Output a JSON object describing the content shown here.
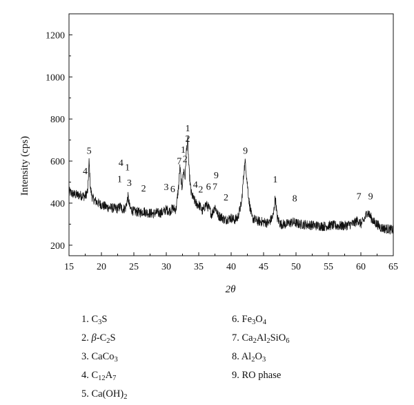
{
  "chart_data": {
    "type": "line",
    "xlabel": "2θ",
    "ylabel": "Intensity (cps)",
    "xlim": [
      15,
      65
    ],
    "ylim": [
      150,
      1300
    ],
    "xticks": [
      "15",
      "20",
      "25",
      "30",
      "35",
      "40",
      "45",
      "50",
      "55",
      "60",
      "65"
    ],
    "yticks": [
      "200",
      "400",
      "600",
      "800",
      "1000",
      "1200"
    ],
    "grid": false,
    "series": [
      {
        "points": [
          [
            15,
            455
          ],
          [
            15.5,
            445
          ],
          [
            16,
            440
          ],
          [
            16.5,
            438
          ],
          [
            17,
            436
          ],
          [
            17.5,
            432
          ],
          [
            17.9,
            460
          ],
          [
            18.1,
            600
          ],
          [
            18.3,
            470
          ],
          [
            18.6,
            425
          ],
          [
            19,
            412
          ],
          [
            19.5,
            400
          ],
          [
            20,
            392
          ],
          [
            20.5,
            385
          ],
          [
            21,
            380
          ],
          [
            21.5,
            378
          ],
          [
            22,
            375
          ],
          [
            22.5,
            373
          ],
          [
            22.9,
            385
          ],
          [
            23.2,
            372
          ],
          [
            23.7,
            375
          ],
          [
            24.1,
            430
          ],
          [
            24.4,
            375
          ],
          [
            25,
            360
          ],
          [
            25.5,
            358
          ],
          [
            26,
            355
          ],
          [
            26.5,
            362
          ],
          [
            27,
            355
          ],
          [
            27.5,
            352
          ],
          [
            28,
            350
          ],
          [
            28.5,
            355
          ],
          [
            29,
            352
          ],
          [
            29.5,
            358
          ],
          [
            30,
            370
          ],
          [
            30.5,
            362
          ],
          [
            31,
            375
          ],
          [
            31.5,
            370
          ],
          [
            31.9,
            480
          ],
          [
            32.1,
            570
          ],
          [
            32.4,
            470
          ],
          [
            32.7,
            560
          ],
          [
            32.9,
            520
          ],
          [
            33.1,
            650
          ],
          [
            33.3,
            700
          ],
          [
            33.5,
            560
          ],
          [
            33.8,
            450
          ],
          [
            34.2,
            420
          ],
          [
            34.6,
            398
          ],
          [
            35.1,
            390
          ],
          [
            35.6,
            360
          ],
          [
            36.1,
            395
          ],
          [
            36.6,
            375
          ],
          [
            37,
            345
          ],
          [
            37.5,
            385
          ],
          [
            38,
            340
          ],
          [
            38.5,
            335
          ],
          [
            39,
            320
          ],
          [
            39.5,
            325
          ],
          [
            40,
            330
          ],
          [
            40.5,
            320
          ],
          [
            41,
            330
          ],
          [
            41.6,
            400
          ],
          [
            42,
            560
          ],
          [
            42.2,
            600
          ],
          [
            42.4,
            520
          ],
          [
            42.8,
            400
          ],
          [
            43.2,
            330
          ],
          [
            44,
            315
          ],
          [
            45,
            310
          ],
          [
            45.8,
            305
          ],
          [
            46.5,
            340
          ],
          [
            46.8,
            430
          ],
          [
            47.1,
            330
          ],
          [
            47.6,
            300
          ],
          [
            48.5,
            300
          ],
          [
            49.5,
            310
          ],
          [
            50.5,
            300
          ],
          [
            51.5,
            298
          ],
          [
            52.5,
            295
          ],
          [
            53.5,
            292
          ],
          [
            54.5,
            290
          ],
          [
            55.5,
            295
          ],
          [
            56.5,
            292
          ],
          [
            57.5,
            292
          ],
          [
            58.5,
            300
          ],
          [
            59,
            305
          ],
          [
            59.5,
            320
          ],
          [
            60,
            300
          ],
          [
            60.5,
            320
          ],
          [
            61,
            360
          ],
          [
            61.4,
            340
          ],
          [
            62,
            310
          ],
          [
            62.5,
            300
          ],
          [
            63,
            285
          ],
          [
            63.5,
            280
          ],
          [
            64,
            278
          ],
          [
            64.5,
            275
          ],
          [
            65,
            272
          ]
        ]
      }
    ],
    "annotations": [
      {
        "text": "5",
        "x": 18.1,
        "y": 635
      },
      {
        "text": "4",
        "x": 17.5,
        "y": 538
      },
      {
        "text": "4",
        "x": 23.0,
        "y": 577
      },
      {
        "text": "1",
        "x": 24.0,
        "y": 555
      },
      {
        "text": "1",
        "x": 22.8,
        "y": 500
      },
      {
        "text": "3",
        "x": 24.3,
        "y": 482
      },
      {
        "text": "2",
        "x": 26.5,
        "y": 456
      },
      {
        "text": "3",
        "x": 30.0,
        "y": 462
      },
      {
        "text": "6",
        "x": 31.0,
        "y": 452
      },
      {
        "text": "7",
        "x": 32.0,
        "y": 585
      },
      {
        "text": "1",
        "x": 32.6,
        "y": 640
      },
      {
        "text": "2",
        "x": 32.9,
        "y": 595
      },
      {
        "text": "1",
        "x": 33.3,
        "y": 742
      },
      {
        "text": "2",
        "x": 33.3,
        "y": 692
      },
      {
        "text": "4",
        "x": 34.5,
        "y": 473
      },
      {
        "text": "2",
        "x": 35.3,
        "y": 450
      },
      {
        "text": "6",
        "x": 36.5,
        "y": 463
      },
      {
        "text": "7",
        "x": 37.5,
        "y": 463
      },
      {
        "text": "9",
        "x": 37.7,
        "y": 518
      },
      {
        "text": "2",
        "x": 39.2,
        "y": 413
      },
      {
        "text": "9",
        "x": 42.2,
        "y": 635
      },
      {
        "text": "1",
        "x": 46.8,
        "y": 498
      },
      {
        "text": "8",
        "x": 49.8,
        "y": 408
      },
      {
        "text": "7",
        "x": 59.7,
        "y": 418
      },
      {
        "text": "9",
        "x": 61.5,
        "y": 418
      }
    ]
  },
  "legend": {
    "col1": [
      {
        "num": "1.",
        "parts": [
          [
            "C",
            ""
          ],
          [
            "3",
            "sub"
          ],
          [
            "S",
            ""
          ]
        ]
      },
      {
        "num": "2.",
        "parts": [
          [
            "β",
            "i"
          ],
          [
            "-C",
            ""
          ],
          [
            "2",
            "sub"
          ],
          [
            "S",
            ""
          ]
        ]
      },
      {
        "num": "3.",
        "parts": [
          [
            "CaCo",
            ""
          ],
          [
            "3",
            "sub"
          ]
        ]
      },
      {
        "num": "4.",
        "parts": [
          [
            "C",
            ""
          ],
          [
            "12",
            "sub"
          ],
          [
            "A",
            ""
          ],
          [
            "7",
            "sub"
          ]
        ]
      },
      {
        "num": "5.",
        "parts": [
          [
            "Ca(OH)",
            ""
          ],
          [
            "2",
            "sub"
          ]
        ]
      }
    ],
    "col2": [
      {
        "num": "6.",
        "parts": [
          [
            "Fe",
            ""
          ],
          [
            "3",
            "sub"
          ],
          [
            "O",
            ""
          ],
          [
            "4",
            "sub"
          ]
        ]
      },
      {
        "num": "7.",
        "parts": [
          [
            "Ca",
            ""
          ],
          [
            "2",
            "sub"
          ],
          [
            "Al",
            ""
          ],
          [
            "2",
            "sub"
          ],
          [
            "SiO",
            ""
          ],
          [
            "6",
            "sub"
          ]
        ]
      },
      {
        "num": "8.",
        "parts": [
          [
            "Al",
            ""
          ],
          [
            "2",
            "sub"
          ],
          [
            "O",
            ""
          ],
          [
            "3",
            "sub"
          ]
        ]
      },
      {
        "num": "9.",
        "parts": [
          [
            "RO phase",
            ""
          ]
        ]
      }
    ]
  }
}
